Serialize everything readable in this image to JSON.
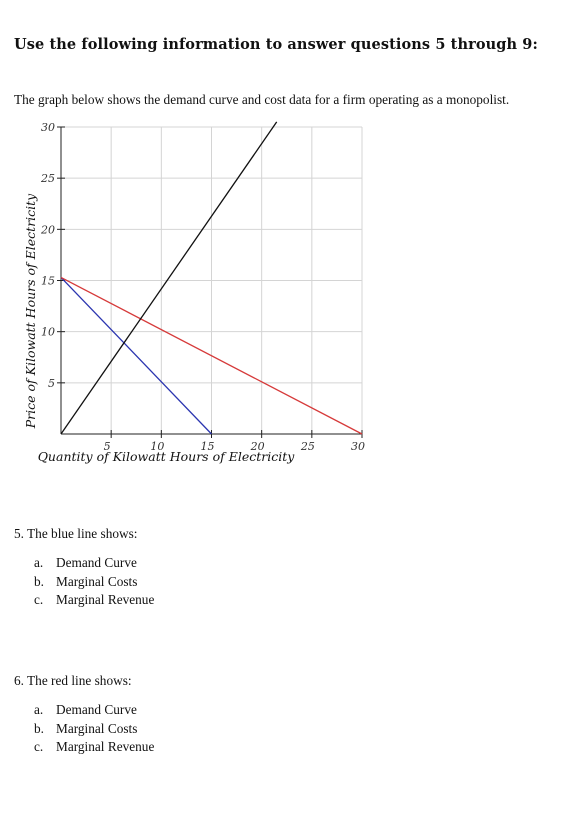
{
  "heading": "Use the following information to answer questions 5 through 9:",
  "intro": "The graph below shows the demand curve and cost data for a firm operating as a monopolist.",
  "chart_data": {
    "type": "line",
    "xlabel": "Quantity of Kilowatt Hours of Electricity",
    "ylabel": "Price of Kilowatt Hours of Electricity",
    "xlim": [
      0,
      30
    ],
    "ylim": [
      0,
      30
    ],
    "grid": true,
    "x_ticks": [
      5,
      10,
      15,
      20,
      25,
      30
    ],
    "x_tick_labels": [
      "5",
      "10",
      "15",
      "20",
      "25",
      "30"
    ],
    "y_ticks": [
      5,
      10,
      15,
      20,
      25,
      30
    ],
    "y_tick_labels": [
      "5",
      "10",
      "15",
      "20",
      "25",
      "30"
    ],
    "series": [
      {
        "color": "#2b35b0",
        "points": [
          [
            0,
            15.3
          ],
          [
            15,
            0
          ]
        ]
      },
      {
        "color": "#d63a3a",
        "points": [
          [
            0,
            15.3
          ],
          [
            30,
            0
          ]
        ]
      },
      {
        "color": "#111111",
        "points": [
          [
            0,
            0
          ],
          [
            21.5,
            30.5
          ]
        ]
      }
    ]
  },
  "questions": [
    {
      "stem": "5. The blue line shows:",
      "options": [
        {
          "letter": "a.",
          "text": "Demand Curve"
        },
        {
          "letter": "b.",
          "text": "Marginal Costs"
        },
        {
          "letter": "c.",
          "text": "Marginal Revenue"
        }
      ]
    },
    {
      "stem": "6. The red line shows:",
      "options": [
        {
          "letter": "a.",
          "text": "Demand Curve"
        },
        {
          "letter": "b.",
          "text": "Marginal Costs"
        },
        {
          "letter": "c.",
          "text": "Marginal Revenue"
        }
      ]
    }
  ]
}
